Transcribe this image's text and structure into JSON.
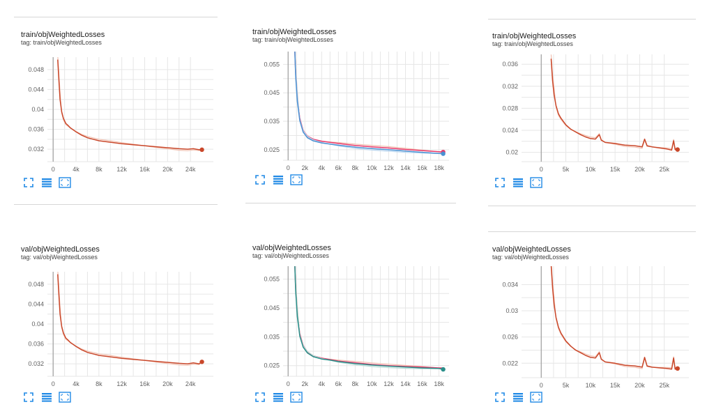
{
  "colors": {
    "orange": "#c9472a",
    "orange_faint": "#f1c0b0",
    "pink": "#e8396b",
    "blue": "#4a90d2",
    "blue_faint": "#b9d6f0",
    "teal": "#2a8f8a",
    "teal_faint": "#b7d9d5",
    "grid": "#e6e6e6",
    "axis": "#9e9e9e",
    "icon": "#1e88e5"
  },
  "toolbar_icons": [
    "expand-icon",
    "data-table-icon",
    "fit-domain-icon"
  ],
  "charts": [
    {
      "title": "train/objWeightedLosses",
      "tag": "tag: train/objWeightedLosses",
      "chart_data": {
        "type": "line",
        "xlim": [
          -1000,
          28000
        ],
        "ylim": [
          0.0295,
          0.0505
        ],
        "x_ticks": [
          {
            "v": 0,
            "l": "0"
          },
          {
            "v": 4000,
            "l": "4k"
          },
          {
            "v": 8000,
            "l": "8k"
          },
          {
            "v": 12000,
            "l": "12k"
          },
          {
            "v": 16000,
            "l": "16k"
          },
          {
            "v": 20000,
            "l": "20k"
          },
          {
            "v": 24000,
            "l": "24k"
          }
        ],
        "y_ticks": [
          {
            "v": 0.032,
            "l": "0.032"
          },
          {
            "v": 0.036,
            "l": "0.036"
          },
          {
            "v": 0.04,
            "l": "0.04"
          },
          {
            "v": 0.044,
            "l": "0.044"
          },
          {
            "v": 0.048,
            "l": "0.048"
          }
        ],
        "grid": true,
        "series": [
          {
            "color_key": "orange",
            "faint_key": "orange_faint",
            "end_marker": true,
            "x": [
              800,
              1000,
              1200,
              1500,
              1800,
              2200,
              2600,
              3000,
              4000,
              5000,
              6000,
              8000,
              10000,
              12000,
              14000,
              16000,
              18000,
              20000,
              22000,
              23500,
              24500,
              25500,
              26000
            ],
            "y": [
              0.05,
              0.046,
              0.042,
              0.0395,
              0.0382,
              0.0372,
              0.0368,
              0.0363,
              0.0355,
              0.0348,
              0.0343,
              0.0337,
              0.0334,
              0.0331,
              0.0329,
              0.0327,
              0.0325,
              0.0323,
              0.0321,
              0.032,
              0.0321,
              0.0319,
              0.0319
            ]
          }
        ]
      }
    },
    {
      "title": "train/objWeightedLosses",
      "tag": "tag: train/objWeightedLosses",
      "chart_data": {
        "type": "line",
        "xlim": [
          -600,
          19200
        ],
        "ylim": [
          0.0213,
          0.0595
        ],
        "x_ticks": [
          {
            "v": 0,
            "l": "0"
          },
          {
            "v": 2000,
            "l": "2k"
          },
          {
            "v": 4000,
            "l": "4k"
          },
          {
            "v": 6000,
            "l": "6k"
          },
          {
            "v": 8000,
            "l": "8k"
          },
          {
            "v": 10000,
            "l": "10k"
          },
          {
            "v": 12000,
            "l": "12k"
          },
          {
            "v": 14000,
            "l": "14k"
          },
          {
            "v": 16000,
            "l": "16k"
          },
          {
            "v": 18000,
            "l": "18k"
          }
        ],
        "y_ticks": [
          {
            "v": 0.025,
            "l": "0.025"
          },
          {
            "v": 0.035,
            "l": "0.035"
          },
          {
            "v": 0.045,
            "l": "0.045"
          },
          {
            "v": 0.055,
            "l": "0.055"
          }
        ],
        "grid": true,
        "series": [
          {
            "color_key": "pink",
            "faint_key": "orange_faint",
            "end_marker": true,
            "x": [
              800,
              900,
              1100,
              1400,
              1800,
              2300,
              3000,
              4000,
              5000,
              6000,
              8000,
              10000,
              12000,
              14000,
              16000,
              18000,
              18500
            ],
            "y": [
              0.06,
              0.052,
              0.043,
              0.036,
              0.0318,
              0.0298,
              0.0287,
              0.028,
              0.0276,
              0.0272,
              0.0265,
              0.026,
              0.0256,
              0.0251,
              0.0247,
              0.0243,
              0.0242
            ]
          },
          {
            "color_key": "blue",
            "faint_key": "blue_faint",
            "end_marker": true,
            "x": [
              800,
              900,
              1100,
              1400,
              1800,
              2300,
              3000,
              4000,
              5000,
              6000,
              8000,
              10000,
              12000,
              14000,
              16000,
              18000,
              18500
            ],
            "y": [
              0.06,
              0.051,
              0.042,
              0.0352,
              0.0312,
              0.0292,
              0.0281,
              0.0274,
              0.027,
              0.0266,
              0.0259,
              0.0254,
              0.025,
              0.0245,
              0.0241,
              0.0237,
              0.0236
            ]
          }
        ]
      }
    },
    {
      "title": "train/objWeightedLosses",
      "tag": "tag: train/objWeightedLosses",
      "chart_data": {
        "type": "line",
        "xlim": [
          -4000,
          30000
        ],
        "ylim": [
          0.0183,
          0.0378
        ],
        "x_ticks": [
          {
            "v": 0,
            "l": "0"
          },
          {
            "v": 5000,
            "l": "5k"
          },
          {
            "v": 10000,
            "l": "10k"
          },
          {
            "v": 15000,
            "l": "15k"
          },
          {
            "v": 20000,
            "l": "20k"
          },
          {
            "v": 25000,
            "l": "25k"
          }
        ],
        "y_ticks": [
          {
            "v": 0.02,
            "l": "0.02"
          },
          {
            "v": 0.024,
            "l": "0.024"
          },
          {
            "v": 0.028,
            "l": "0.028"
          },
          {
            "v": 0.032,
            "l": "0.032"
          },
          {
            "v": 0.036,
            "l": "0.036"
          }
        ],
        "grid": true,
        "series": [
          {
            "color_key": "orange",
            "faint_key": "orange_faint",
            "end_marker": true,
            "x": [
              2000,
              2300,
              2600,
              3000,
              3500,
              4000,
              5000,
              6000,
              7000,
              8000,
              9000,
              10000,
              11000,
              11800,
              12200,
              13000,
              15000,
              17000,
              19000,
              20500,
              21000,
              21500,
              22500,
              24000,
              25500,
              26500,
              26900,
              27200,
              27700
            ],
            "y": [
              0.037,
              0.033,
              0.0305,
              0.0285,
              0.027,
              0.0262,
              0.025,
              0.0242,
              0.0237,
              0.0232,
              0.0228,
              0.0225,
              0.0224,
              0.0232,
              0.0222,
              0.0218,
              0.0216,
              0.0213,
              0.0212,
              0.021,
              0.0224,
              0.0212,
              0.021,
              0.0208,
              0.0206,
              0.0204,
              0.0221,
              0.0205,
              0.0205
            ]
          }
        ]
      }
    },
    {
      "title": "val/objWeightedLosses",
      "tag": "tag: val/objWeightedLosses",
      "chart_data": {
        "type": "line",
        "xlim": [
          -1000,
          28000
        ],
        "ylim": [
          0.0295,
          0.0505
        ],
        "x_ticks": [
          {
            "v": 0,
            "l": "0"
          },
          {
            "v": 4000,
            "l": "4k"
          },
          {
            "v": 8000,
            "l": "8k"
          },
          {
            "v": 12000,
            "l": "12k"
          },
          {
            "v": 16000,
            "l": "16k"
          },
          {
            "v": 20000,
            "l": "20k"
          },
          {
            "v": 24000,
            "l": "24k"
          }
        ],
        "y_ticks": [
          {
            "v": 0.032,
            "l": "0.032"
          },
          {
            "v": 0.036,
            "l": "0.036"
          },
          {
            "v": 0.04,
            "l": "0.04"
          },
          {
            "v": 0.044,
            "l": "0.044"
          },
          {
            "v": 0.048,
            "l": "0.048"
          }
        ],
        "grid": true,
        "series": [
          {
            "color_key": "orange",
            "faint_key": "orange_faint",
            "end_marker": true,
            "x": [
              800,
              1000,
              1200,
              1500,
              1800,
              2200,
              2600,
              3000,
              4000,
              5000,
              6000,
              8000,
              10000,
              12000,
              14000,
              16000,
              18000,
              20000,
              22000,
              23500,
              24500,
              25500,
              26000
            ],
            "y": [
              0.05,
              0.046,
              0.042,
              0.0395,
              0.0382,
              0.0372,
              0.0368,
              0.0363,
              0.0355,
              0.0348,
              0.0343,
              0.0337,
              0.0334,
              0.0331,
              0.0329,
              0.0327,
              0.0325,
              0.0323,
              0.0321,
              0.032,
              0.0322,
              0.032,
              0.0324
            ]
          }
        ]
      }
    },
    {
      "title": "val/objWeightedLosses",
      "tag": "tag: val/objWeightedLosses",
      "chart_data": {
        "type": "line",
        "xlim": [
          -600,
          19200
        ],
        "ylim": [
          0.0213,
          0.0595
        ],
        "x_ticks": [
          {
            "v": 0,
            "l": "0"
          },
          {
            "v": 2000,
            "l": "2k"
          },
          {
            "v": 4000,
            "l": "4k"
          },
          {
            "v": 6000,
            "l": "6k"
          },
          {
            "v": 8000,
            "l": "8k"
          },
          {
            "v": 10000,
            "l": "10k"
          },
          {
            "v": 12000,
            "l": "12k"
          },
          {
            "v": 14000,
            "l": "14k"
          },
          {
            "v": 16000,
            "l": "16k"
          },
          {
            "v": 18000,
            "l": "18k"
          }
        ],
        "y_ticks": [
          {
            "v": 0.025,
            "l": "0.025"
          },
          {
            "v": 0.035,
            "l": "0.035"
          },
          {
            "v": 0.045,
            "l": "0.045"
          },
          {
            "v": 0.055,
            "l": "0.055"
          }
        ],
        "grid": true,
        "series": [
          {
            "color_key": "pink",
            "faint_key": "orange_faint",
            "end_marker": false,
            "x": [
              800,
              900,
              1100,
              1400,
              1800,
              2300,
              3000,
              4000,
              5000,
              6000,
              8000,
              10000,
              12000,
              14000,
              16000,
              18000,
              18500
            ],
            "y": [
              0.06,
              0.052,
              0.043,
              0.036,
              0.032,
              0.0298,
              0.0284,
              0.0276,
              0.0271,
              0.0266,
              0.026,
              0.0254,
              0.025,
              0.0247,
              0.0245,
              0.0242,
              0.0242
            ]
          },
          {
            "color_key": "teal",
            "faint_key": "teal_faint",
            "end_marker": true,
            "x": [
              800,
              900,
              1100,
              1400,
              1800,
              2300,
              3000,
              4000,
              5000,
              6000,
              8000,
              10000,
              12000,
              14000,
              16000,
              18000,
              18500
            ],
            "y": [
              0.06,
              0.051,
              0.042,
              0.0352,
              0.0314,
              0.0294,
              0.0281,
              0.0273,
              0.0269,
              0.0264,
              0.0257,
              0.0252,
              0.0248,
              0.0245,
              0.0242,
              0.024,
              0.0237
            ]
          }
        ]
      }
    },
    {
      "title": "val/objWeightedLosses",
      "tag": "tag: val/objWeightedLosses",
      "chart_data": {
        "type": "line",
        "xlim": [
          -4000,
          30000
        ],
        "ylim": [
          0.0198,
          0.0368
        ],
        "x_ticks": [
          {
            "v": 0,
            "l": "0"
          },
          {
            "v": 5000,
            "l": "5k"
          },
          {
            "v": 10000,
            "l": "10k"
          },
          {
            "v": 15000,
            "l": "15k"
          },
          {
            "v": 20000,
            "l": "20k"
          },
          {
            "v": 25000,
            "l": "25k"
          }
        ],
        "y_ticks": [
          {
            "v": 0.022,
            "l": "0.022"
          },
          {
            "v": 0.026,
            "l": "0.026"
          },
          {
            "v": 0.03,
            "l": "0.03"
          },
          {
            "v": 0.034,
            "l": "0.034"
          }
        ],
        "grid": true,
        "series": [
          {
            "color_key": "orange",
            "faint_key": "orange_faint",
            "end_marker": true,
            "x": [
              2000,
              2300,
              2600,
              3000,
              3500,
              4000,
              5000,
              6000,
              7000,
              8000,
              9000,
              10000,
              11000,
              11800,
              12200,
              13000,
              15000,
              17000,
              19000,
              20500,
              21000,
              21500,
              22500,
              24000,
              25500,
              26500,
              26900,
              27200,
              27700
            ],
            "y": [
              0.037,
              0.0335,
              0.031,
              0.029,
              0.0275,
              0.0266,
              0.0254,
              0.0246,
              0.024,
              0.0236,
              0.0232,
              0.0229,
              0.0228,
              0.0236,
              0.0226,
              0.0222,
              0.022,
              0.0217,
              0.0216,
              0.0214,
              0.0229,
              0.0216,
              0.0214,
              0.0213,
              0.0212,
              0.0211,
              0.0228,
              0.0211,
              0.0212
            ]
          }
        ]
      }
    }
  ]
}
